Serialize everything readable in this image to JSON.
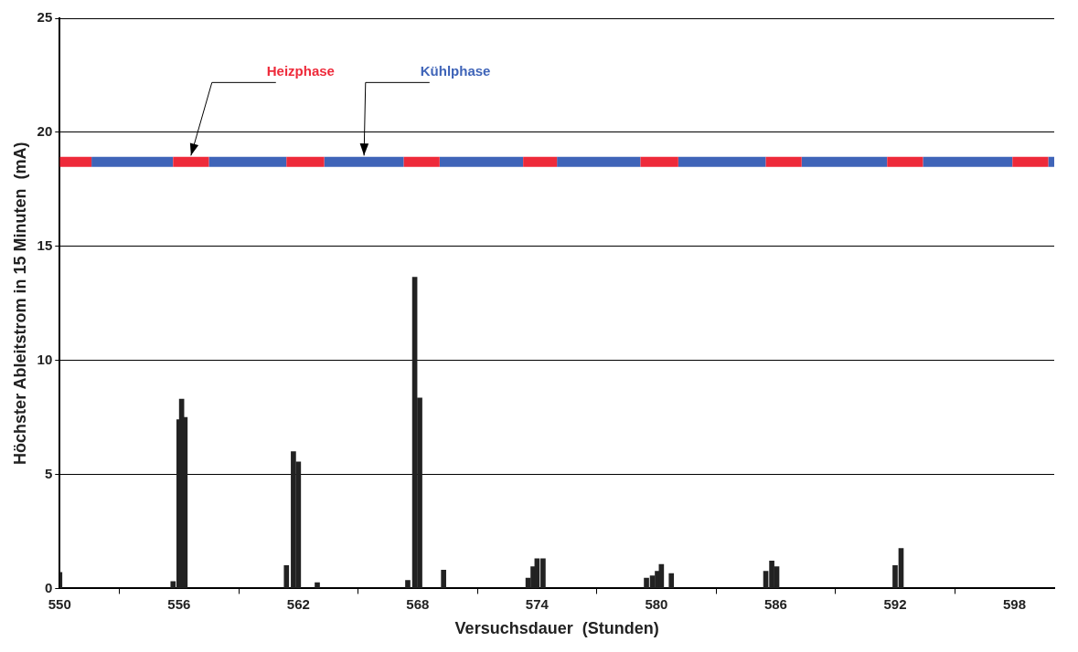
{
  "chart_data": {
    "type": "bar",
    "xlabel": "Versuchsdauer  (Stunden)",
    "ylabel": "Höchster Ableitstrom in 15 Minuten  (mA)",
    "xlim": [
      550,
      600
    ],
    "xticks": [
      550,
      556,
      562,
      568,
      574,
      580,
      586,
      592,
      598
    ],
    "ylim": [
      0,
      25
    ],
    "yticks": [
      0,
      5,
      10,
      15,
      20,
      25
    ],
    "grid": "y",
    "legend": false,
    "series": [
      {
        "color": "#222222",
        "x": [
          550.0,
          555.7,
          556.0,
          556.13,
          556.3,
          561.4,
          561.75,
          562.0,
          562.95,
          567.5,
          567.85,
          568.1,
          569.3,
          573.55,
          573.8,
          574.0,
          574.3,
          579.5,
          579.8,
          580.05,
          580.25,
          580.75,
          585.5,
          585.8,
          586.05,
          592.0,
          592.3
        ],
        "values": [
          0.7,
          0.3,
          7.4,
          8.3,
          7.5,
          1.0,
          6.0,
          5.55,
          0.25,
          0.35,
          13.65,
          8.35,
          0.8,
          0.45,
          0.95,
          1.3,
          1.3,
          0.45,
          0.55,
          0.75,
          1.05,
          0.65,
          0.75,
          1.2,
          0.95,
          1.0,
          1.75
        ]
      },
      {
        "type": "line",
        "name": "Heizphase",
        "color": "#ee2a3a",
        "x": [
          550.0,
          551.6,
          null,
          555.7,
          557.5,
          null,
          561.4,
          563.3,
          null,
          567.3,
          569.1,
          null,
          573.3,
          575.0,
          null,
          579.2,
          581.1,
          null,
          585.5,
          587.3,
          null,
          591.6,
          593.4,
          null,
          597.9,
          599.7
        ],
        "values": [
          18.7,
          18.7,
          null,
          18.7,
          18.7,
          null,
          18.7,
          18.7,
          null,
          18.7,
          18.7,
          null,
          18.7,
          18.7,
          null,
          18.7,
          18.7,
          null,
          18.7,
          18.7,
          null,
          18.7,
          18.7,
          null,
          18.7,
          18.7
        ]
      },
      {
        "type": "line",
        "name": "Kühlphase",
        "color": "#3f64b8",
        "x": [
          551.6,
          555.7,
          null,
          557.5,
          561.4,
          null,
          563.3,
          567.3,
          null,
          569.1,
          573.3,
          null,
          575.0,
          579.2,
          null,
          581.1,
          585.5,
          null,
          587.3,
          591.6,
          null,
          593.4,
          597.9,
          null,
          599.7,
          600.0
        ],
        "values": [
          18.7,
          18.7,
          null,
          18.7,
          18.7,
          null,
          18.7,
          18.7,
          null,
          18.7,
          18.7,
          null,
          18.7,
          18.7,
          null,
          18.7,
          18.7,
          null,
          18.7,
          18.7,
          null,
          18.7,
          18.7,
          null,
          18.7,
          18.7
        ]
      }
    ]
  }
}
